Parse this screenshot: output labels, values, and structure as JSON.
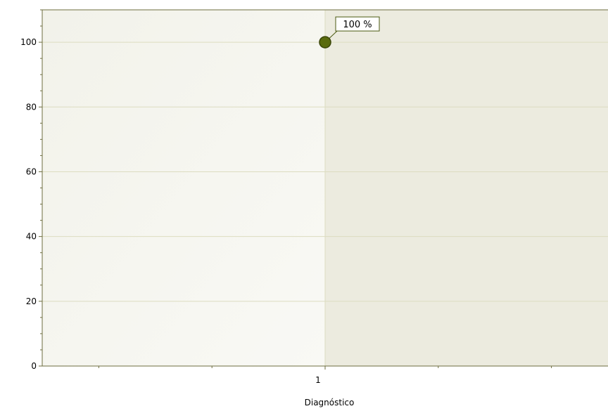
{
  "chart_data": {
    "type": "scatter",
    "title": "",
    "xlabel": "Diagnóstico",
    "ylabel": "",
    "categories": [
      "1"
    ],
    "ylim": [
      0,
      110
    ],
    "yticks": [
      0,
      20,
      40,
      60,
      80,
      100
    ],
    "grid": true,
    "legend": "none",
    "series": [
      {
        "values": [
          100
        ],
        "labels": [
          "100 %"
        ],
        "color": "#5a6b0e"
      }
    ],
    "colors": {
      "plot_left": "#f7f7f2",
      "plot_right": "#ecebdf",
      "grid": "#dcdcc0",
      "axis": "#6d6d3f",
      "label_border": "#4b5a10"
    }
  }
}
